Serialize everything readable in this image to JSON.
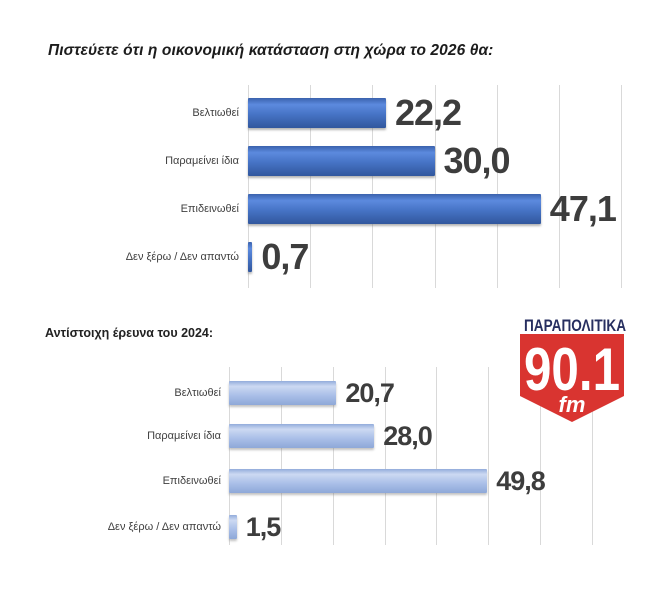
{
  "title": "Πιστεύετε ότι η οικονομική κατάσταση στη χώρα το 2026 θα:",
  "previous_survey_label": "Αντίστοιχη έρευνα του 2024:",
  "logo": {
    "brand": "ΠΑΡΑΠΟΛΙΤΙΚΑ",
    "frequency": "90.1",
    "band": "fm",
    "navy": "#272f60",
    "red": "#d93430"
  },
  "colors": {
    "bar_2026": "#4472c4",
    "bar_2024": "#aabfe8",
    "gridline": "#d9d9d9",
    "value_text": "#3d3d3d",
    "category_text": "#3f3f3f"
  },
  "chart_data": [
    {
      "id": "chart-2026",
      "type": "bar",
      "orientation": "horizontal",
      "title": "Πιστεύετε ότι η οικονομική κατάσταση στη χώρα το 2026 θα:",
      "categories": [
        "Βελτιωθεί",
        "Παραμείνει ίδια",
        "Επιδεινωθεί",
        "Δεν ξέρω / Δεν απαντώ"
      ],
      "values": [
        22.2,
        30.0,
        47.1,
        0.7
      ],
      "value_labels": [
        "22,2",
        "30,0",
        "47,1",
        "0,7"
      ],
      "xlim": [
        0,
        60
      ],
      "gridline_step": 10,
      "grid": true,
      "legend": false,
      "bar_color": "#4472c4"
    },
    {
      "id": "chart-2024",
      "type": "bar",
      "orientation": "horizontal",
      "title": "Αντίστοιχη έρευνα του 2024:",
      "categories": [
        "Βελτιωθεί",
        "Παραμείνει ίδια",
        "Επιδεινωθεί",
        "Δεν ξέρω / Δεν απαντώ"
      ],
      "values": [
        20.7,
        28.0,
        49.8,
        1.5
      ],
      "value_labels": [
        "20,7",
        "28,0",
        "49,8",
        "1,5"
      ],
      "xlim": [
        0,
        70
      ],
      "gridline_step": 10,
      "grid": true,
      "legend": false,
      "bar_color": "#aabfe8"
    }
  ]
}
